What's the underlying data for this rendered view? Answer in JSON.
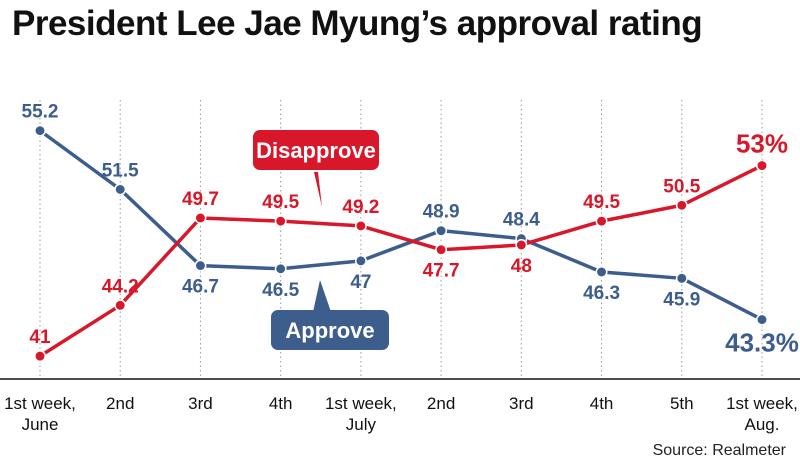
{
  "chart_data": {
    "type": "line",
    "title": "President Lee Jae Myung’s approval rating",
    "source": "Source: Realmeter",
    "categories": [
      [
        "1st week,",
        "June"
      ],
      [
        "2nd"
      ],
      [
        "3rd"
      ],
      [
        "4th"
      ],
      [
        "1st week,",
        "July"
      ],
      [
        "2nd"
      ],
      [
        "3rd"
      ],
      [
        "4th"
      ],
      [
        "5th"
      ],
      [
        "1st week,",
        "Aug."
      ]
    ],
    "ylim": [
      40,
      56.5
    ],
    "grid": "vertical-dotted",
    "series": [
      {
        "name": "Approve",
        "color": "#3d5e8c",
        "values": [
          55.2,
          51.5,
          46.7,
          46.5,
          47,
          48.9,
          48.4,
          46.3,
          45.9,
          43.3
        ],
        "labels": [
          "55.2",
          "51.5",
          "46.7",
          "46.5",
          "47",
          "48.9",
          "48.4",
          "46.3",
          "45.9",
          "43.3%"
        ],
        "label_pos": [
          "above",
          "above",
          "below",
          "below",
          "below",
          "above",
          "above",
          "below",
          "below",
          "below"
        ]
      },
      {
        "name": "Disapprove",
        "color": "#d8172a",
        "values": [
          41,
          44.2,
          49.7,
          49.5,
          49.2,
          47.7,
          48,
          49.5,
          50.5,
          53
        ],
        "labels": [
          "41",
          "44.2",
          "49.7",
          "49.5",
          "49.2",
          "47.7",
          "48",
          "49.5",
          "50.5",
          "53%"
        ],
        "label_pos": [
          "above",
          "above",
          "above",
          "above",
          "above",
          "below",
          "below",
          "above",
          "above",
          "above"
        ]
      }
    ]
  }
}
